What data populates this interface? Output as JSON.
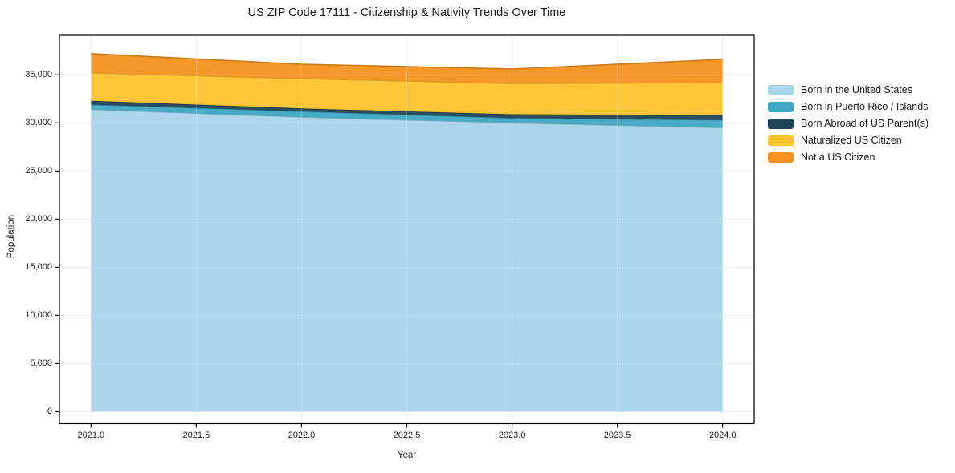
{
  "title": "US ZIP Code 17111 - Citizenship & Nativity Trends Over Time",
  "chart_data": {
    "type": "area",
    "stacked": true,
    "title": "US ZIP Code 17111 - Citizenship & Nativity Trends Over Time",
    "xlabel": "Year",
    "ylabel": "Population",
    "x": [
      2021,
      2022,
      2023,
      2024
    ],
    "series": [
      {
        "name": "Born in the United States",
        "color": "#a6d4ea",
        "values": [
          31400,
          30600,
          30000,
          29500
        ]
      },
      {
        "name": "Born in Puerto Rico / Islands",
        "color": "#3da6c2",
        "values": [
          500,
          600,
          500,
          800
        ]
      },
      {
        "name": "Born Abroad of US Parent(s)",
        "color": "#1f4456",
        "values": [
          400,
          300,
          400,
          500
        ]
      },
      {
        "name": "Naturalized US Citizen",
        "color": "#fcc32d",
        "values": [
          2900,
          3100,
          3200,
          3400
        ]
      },
      {
        "name": "Not a US Citizen",
        "color": "#f5911d",
        "values": [
          2000,
          1500,
          1500,
          2400
        ]
      }
    ],
    "stack_totals": [
      37200,
      36100,
      35600,
      36600
    ],
    "xlim": [
      2020.85,
      2024.15
    ],
    "ylim": [
      -1250,
      39100
    ],
    "x_ticks": [
      "2021.0",
      "2021.5",
      "2022.0",
      "2022.5",
      "2023.0",
      "2023.5",
      "2024.0"
    ],
    "x_tick_values": [
      2021,
      2021.5,
      2022,
      2022.5,
      2023,
      2023.5,
      2024
    ],
    "y_ticks": [
      "0",
      "5,000",
      "10,000",
      "15,000",
      "20,000",
      "25,000",
      "30,000",
      "35,000"
    ],
    "y_tick_values": [
      0,
      5000,
      10000,
      15000,
      20000,
      25000,
      30000,
      35000
    ],
    "grid": true,
    "legend_position": "right-outside",
    "frame_color": "#000000",
    "grid_color": "#e8e8e8"
  }
}
